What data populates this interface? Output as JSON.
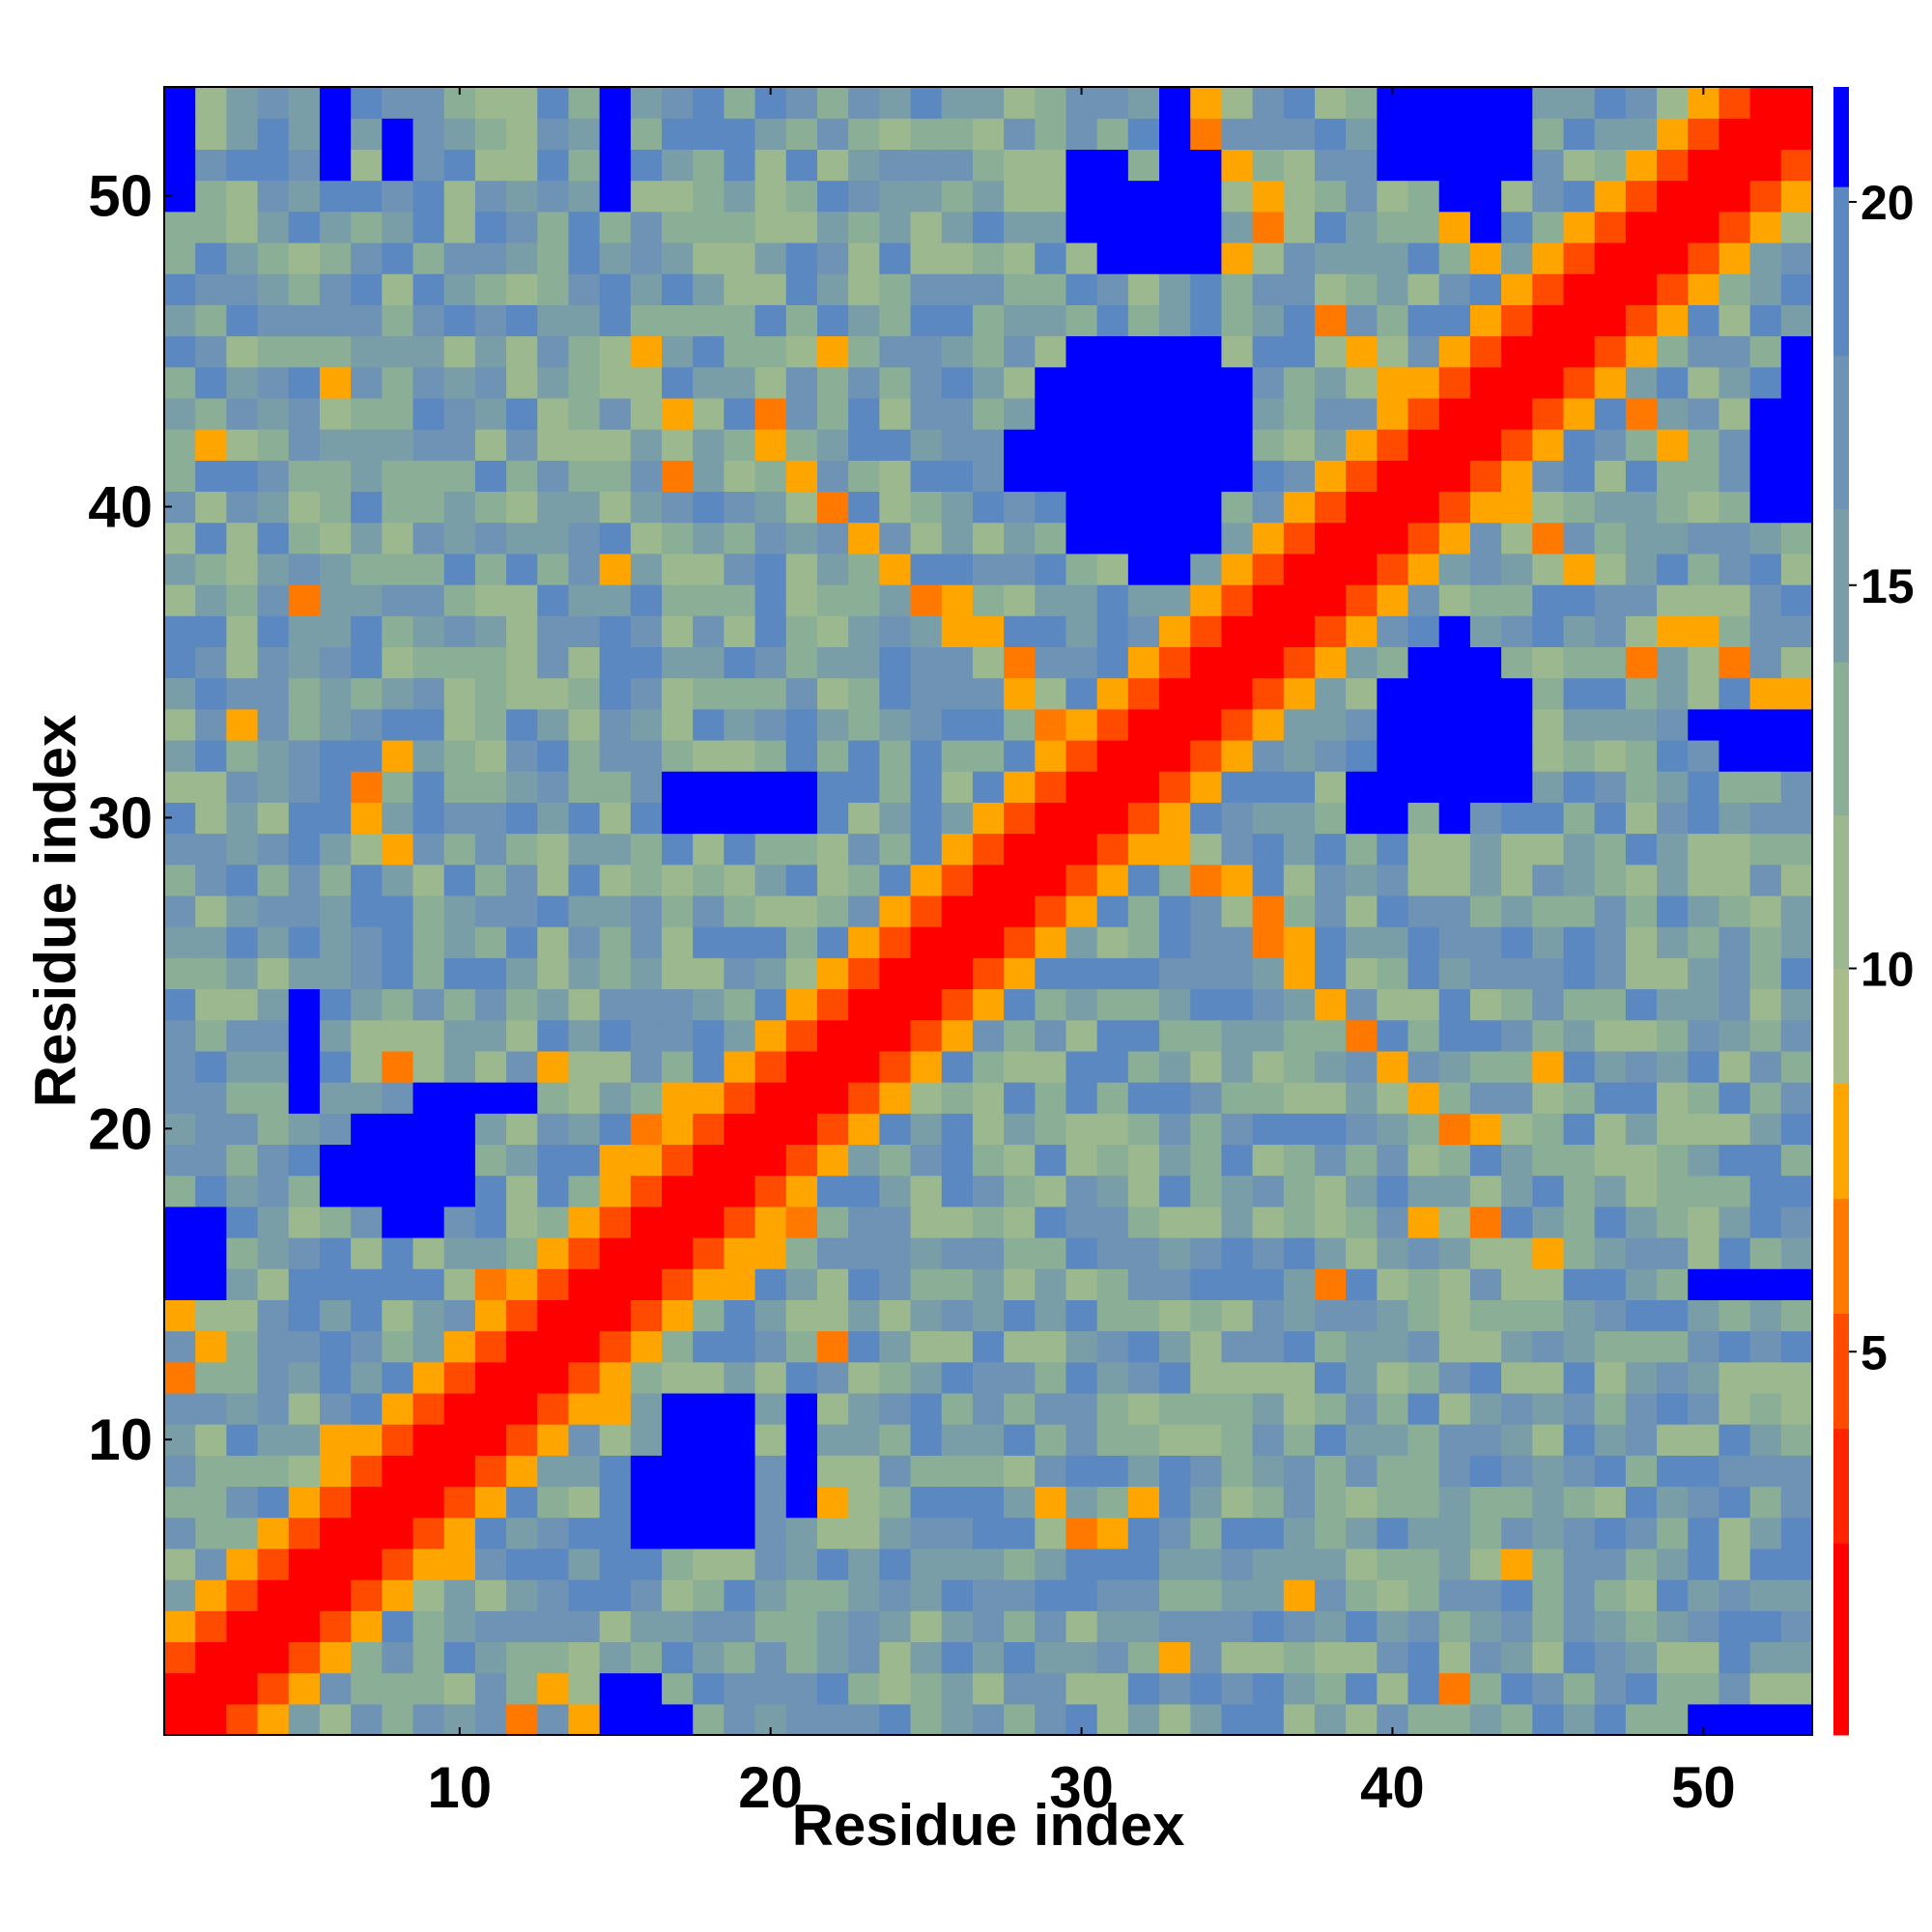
{
  "chart_data": {
    "type": "heatmap",
    "title": "",
    "xlabel": "Residue index",
    "ylabel": "Residue index",
    "n": 53,
    "xlim": [
      0.5,
      53.5
    ],
    "ylim": [
      0.5,
      53.5
    ],
    "x_ticks": [
      10,
      20,
      30,
      40,
      50
    ],
    "y_ticks": [
      10,
      20,
      30,
      40,
      50
    ],
    "colorbar": {
      "range": [
        0,
        21.5
      ],
      "ticks": [
        5,
        10,
        15,
        20
      ],
      "bands": [
        {
          "min": 0,
          "max": 2.5,
          "color": "#ff0000"
        },
        {
          "min": 2.5,
          "max": 4.0,
          "color": "#ff2400"
        },
        {
          "min": 4.0,
          "max": 5.5,
          "color": "#ff4b00"
        },
        {
          "min": 5.5,
          "max": 7.0,
          "color": "#ff7800"
        },
        {
          "min": 7.0,
          "max": 8.5,
          "color": "#ffa500"
        },
        {
          "min": 8.5,
          "max": 10.0,
          "color": "#a8bc8c"
        },
        {
          "min": 10.0,
          "max": 12.0,
          "color": "#9cb88e"
        },
        {
          "min": 12.0,
          "max": 14.0,
          "color": "#8aae96"
        },
        {
          "min": 14.0,
          "max": 16.0,
          "color": "#7a9ea8"
        },
        {
          "min": 16.0,
          "max": 18.0,
          "color": "#6e93b4"
        },
        {
          "min": 18.0,
          "max": 20.2,
          "color": "#5b88c0"
        },
        {
          "min": 20.2,
          "max": 21.5,
          "color": "#0000ff"
        }
      ]
    },
    "description_values": "Symmetric residue-residue distance map; red diagonal band (|i-j|<=1 ~ 1-4), orange near-diagonal contacts, blue far (>20) regions.",
    "blue_regions": [
      [
        42,
        42,
        30,
        36
      ],
      [
        41,
        43,
        31,
        35
      ],
      [
        40,
        44,
        31,
        34
      ],
      [
        39,
        40,
        30,
        31
      ],
      [
        30,
        34,
        39,
        45
      ],
      [
        29,
        35,
        41,
        44
      ],
      [
        28,
        29,
        41,
        42
      ],
      [
        32,
        33,
        38,
        40
      ],
      [
        31,
        32,
        48,
        50
      ],
      [
        33,
        34,
        48,
        53
      ],
      [
        30,
        31,
        49,
        51
      ],
      [
        40,
        44,
        51,
        53
      ],
      [
        42,
        43,
        49,
        50
      ],
      [
        7,
        10,
        18,
        20
      ],
      [
        6,
        7,
        18,
        19
      ],
      [
        8,
        9,
        17,
        18
      ],
      [
        17,
        19,
        7,
        11
      ],
      [
        16,
        18,
        7,
        9
      ],
      [
        21,
        21,
        8,
        11
      ],
      [
        2,
        2,
        15,
        17
      ],
      [
        1,
        1,
        15,
        17
      ],
      [
        15,
        17,
        1,
        1
      ],
      [
        15,
        16,
        2,
        2
      ],
      [
        53,
        53,
        43,
        45
      ],
      [
        52,
        53,
        40,
        43
      ],
      [
        51,
        53,
        32,
        33
      ],
      [
        50,
        53,
        33,
        33
      ],
      [
        50,
        53,
        15,
        15
      ],
      [
        50,
        53,
        1,
        1
      ],
      [
        9,
        12,
        21,
        21
      ],
      [
        5,
        5,
        21,
        24
      ],
      [
        18,
        21,
        30,
        31
      ],
      [
        17,
        18,
        30,
        31
      ],
      [
        1,
        1,
        50,
        53
      ],
      [
        6,
        6,
        51,
        53
      ],
      [
        8,
        8,
        51,
        52
      ],
      [
        15,
        15,
        50,
        53
      ]
    ],
    "orange_points": [
      [
        3,
        1
      ],
      [
        1,
        3
      ],
      [
        4,
        2
      ],
      [
        2,
        4
      ],
      [
        5,
        3
      ],
      [
        3,
        5
      ],
      [
        1,
        12
      ],
      [
        2,
        13
      ],
      [
        1,
        14
      ],
      [
        12,
        1
      ],
      [
        13,
        2
      ],
      [
        14,
        1
      ],
      [
        6,
        8
      ],
      [
        8,
        6
      ],
      [
        7,
        9
      ],
      [
        9,
        7
      ],
      [
        6,
        10
      ],
      [
        10,
        6
      ],
      [
        22,
        13
      ],
      [
        13,
        22
      ],
      [
        22,
        8
      ],
      [
        8,
        22
      ],
      [
        29,
        8
      ],
      [
        8,
        29
      ],
      [
        30,
        7
      ],
      [
        7,
        30
      ],
      [
        31,
        7
      ],
      [
        7,
        31
      ],
      [
        32,
        8
      ],
      [
        8,
        32
      ],
      [
        36,
        26
      ],
      [
        26,
        36
      ],
      [
        37,
        25
      ],
      [
        25,
        37
      ],
      [
        38,
        24
      ],
      [
        24,
        38
      ],
      [
        39,
        23
      ],
      [
        23,
        39
      ],
      [
        40,
        22
      ],
      [
        22,
        40
      ],
      [
        41,
        21
      ],
      [
        21,
        41
      ],
      [
        42,
        20
      ],
      [
        20,
        42
      ],
      [
        21,
        41
      ],
      [
        22,
        40
      ],
      [
        23,
        39
      ],
      [
        24,
        38
      ],
      [
        28,
        35
      ],
      [
        35,
        28
      ],
      [
        27,
        36
      ],
      [
        36,
        27
      ],
      [
        26,
        37
      ],
      [
        37,
        26
      ],
      [
        29,
        33
      ],
      [
        33,
        29
      ],
      [
        28,
        34
      ],
      [
        34,
        28
      ],
      [
        44,
        46
      ],
      [
        46,
        44
      ],
      [
        45,
        47
      ],
      [
        47,
        45
      ],
      [
        43,
        48
      ],
      [
        48,
        43
      ],
      [
        42,
        49
      ],
      [
        49,
        42
      ],
      [
        38,
        46
      ],
      [
        46,
        38
      ],
      [
        39,
        45
      ],
      [
        45,
        39
      ],
      [
        40,
        44
      ],
      [
        44,
        40
      ],
      [
        48,
        35
      ],
      [
        35,
        48
      ],
      [
        49,
        36
      ],
      [
        36,
        49
      ],
      [
        50,
        36
      ],
      [
        36,
        50
      ],
      [
        51,
        35
      ],
      [
        35,
        51
      ],
      [
        52,
        34
      ],
      [
        34,
        52
      ],
      [
        53,
        34
      ],
      [
        34,
        53
      ],
      [
        16,
        20
      ],
      [
        20,
        16
      ],
      [
        17,
        21
      ],
      [
        21,
        17
      ],
      [
        15,
        19
      ],
      [
        19,
        15
      ],
      [
        11,
        15
      ],
      [
        15,
        11
      ],
      [
        12,
        14
      ],
      [
        14,
        12
      ],
      [
        3,
        33
      ],
      [
        33,
        3
      ],
      [
        5,
        37
      ],
      [
        37,
        5
      ],
      [
        2,
        42
      ],
      [
        42,
        2
      ],
      [
        6,
        44
      ],
      [
        44,
        6
      ],
      [
        17,
        41
      ],
      [
        41,
        17
      ],
      [
        15,
        38
      ],
      [
        38,
        15
      ],
      [
        22,
        45
      ],
      [
        45,
        22
      ],
      [
        20,
        43
      ],
      [
        43,
        20
      ],
      [
        17,
        43
      ],
      [
        43,
        17
      ],
      [
        16,
        45
      ],
      [
        45,
        16
      ]
    ]
  }
}
